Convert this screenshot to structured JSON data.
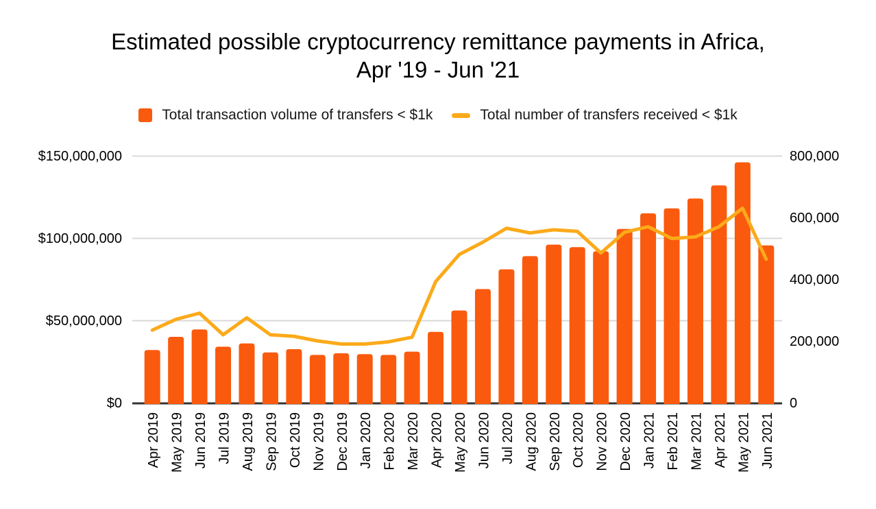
{
  "title": {
    "line1": "Estimated possible cryptocurrency remittance payments in Africa,",
    "line2": "Apr '19 - Jun '21"
  },
  "legend": [
    {
      "label": "Total transaction volume of transfers < $1k",
      "marker": "bar-swatch",
      "color": "#FA5A0D"
    },
    {
      "label": "Total number of transfers received < $1k",
      "marker": "line-swatch",
      "color": "#FBAA1A"
    }
  ],
  "chart_data": {
    "type": "bar+line",
    "title": "Estimated possible cryptocurrency remittance payments in Africa, Apr '19 - Jun '21",
    "categories": [
      "Apr 2019",
      "May 2019",
      "Jun 2019",
      "Jul 2019",
      "Aug 2019",
      "Sep 2019",
      "Oct 2019",
      "Nov 2019",
      "Dec 2019",
      "Jan 2020",
      "Feb 2020",
      "Mar 2020",
      "Apr 2020",
      "May 2020",
      "Jun 2020",
      "Jul 2020",
      "Aug 2020",
      "Sep 2020",
      "Oct 2020",
      "Nov 2020",
      "Dec 2020",
      "Jan 2021",
      "Feb 2021",
      "Mar 2021",
      "Apr 2021",
      "May 2021",
      "Jun 2021"
    ],
    "series": [
      {
        "name": "Total transaction volume of transfers < $1k",
        "type": "bar",
        "axis": "left",
        "color": "#FA5A0D",
        "values": [
          32000000,
          40000000,
          44500000,
          34000000,
          36000000,
          30500000,
          32500000,
          29000000,
          30000000,
          29500000,
          29000000,
          31000000,
          43000000,
          56000000,
          69000000,
          81000000,
          89000000,
          96000000,
          94500000,
          92000000,
          105500000,
          115000000,
          118000000,
          124000000,
          132000000,
          146000000,
          95500000
        ]
      },
      {
        "name": "Total number of transfers received < $1k",
        "type": "line",
        "axis": "right",
        "color": "#FBAA1A",
        "values": [
          235000,
          270000,
          290000,
          220000,
          275000,
          220000,
          215000,
          200000,
          190000,
          190000,
          197000,
          212000,
          392000,
          480000,
          520000,
          565000,
          550000,
          560000,
          555000,
          485000,
          552000,
          570000,
          532000,
          537000,
          570000,
          630000,
          465000
        ]
      }
    ],
    "left_axis": {
      "tick_labels": [
        "$0",
        "$50,000,000",
        "$100,000,000",
        "$150,000,000"
      ],
      "tick_values": [
        0,
        50000000,
        100000000,
        150000000
      ],
      "range": [
        0,
        150000000
      ]
    },
    "right_axis": {
      "tick_labels": [
        "0",
        "200,000",
        "400,000",
        "600,000",
        "800,000"
      ],
      "tick_values": [
        0,
        200000,
        400000,
        600000,
        800000
      ],
      "range": [
        0,
        800000
      ]
    },
    "grid": true,
    "legend_position": "top",
    "gridline_color": "#D9D9D9",
    "baseline_color": "#333333",
    "label_color": "#000000"
  }
}
